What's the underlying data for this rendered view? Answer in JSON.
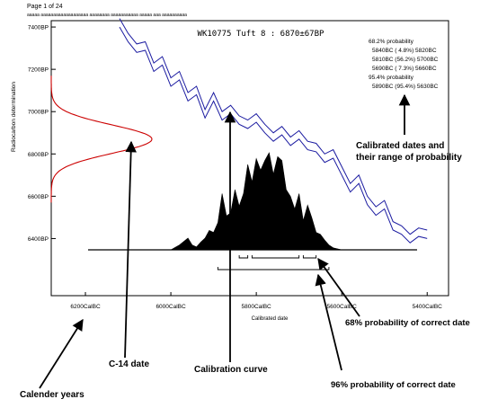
{
  "page_header": {
    "page_label": "Page 1 of 24",
    "url_line": "aaaaa aaaaaaaaaaaaaaaaaaa aaaaaaaa aaaaaaaaaaa aaaaa aaa aaaaaaaaaa"
  },
  "chart_data": {
    "type": "line",
    "title": "WK10775 Tuft 8 : 6870±67BP",
    "xlabel": "Calibrated date",
    "ylabel": "Radiocarbon determination",
    "x_ticks": [
      "6200CalBC",
      "6000CalBC",
      "5800CalBC",
      "5600CalBC",
      "5400CalBC"
    ],
    "x_tick_values": [
      -6200,
      -6000,
      -5800,
      -5600,
      -5400
    ],
    "xlim": [
      -6280,
      -5350
    ],
    "y_ticks": [
      "7400BP",
      "7200BP",
      "7000BP",
      "6800BP",
      "6600BP",
      "6400BP"
    ],
    "y_tick_values": [
      7400,
      7200,
      7000,
      6800,
      6600,
      6400
    ],
    "ylim": [
      6130,
      7430
    ],
    "grid": false,
    "probability_text": [
      "68.2% probability",
      "5840BC ( 4.8%) 5820BC",
      "5810BC (56.2%) 5700BC",
      "5690BC ( 7.3%) 5660BC",
      "95.4% probability",
      "5890BC (95.4%) 5630BC"
    ],
    "calibration_curve": {
      "color": "#1a1aa0",
      "x": [
        -6120,
        -6100,
        -6080,
        -6060,
        -6040,
        -6020,
        -6000,
        -5980,
        -5960,
        -5940,
        -5920,
        -5900,
        -5880,
        -5860,
        -5840,
        -5820,
        -5800,
        -5780,
        -5760,
        -5740,
        -5720,
        -5700,
        -5680,
        -5660,
        -5640,
        -5620,
        -5600,
        -5580,
        -5560,
        -5540,
        -5520,
        -5500,
        -5480,
        -5460,
        -5440,
        -5420,
        -5400
      ],
      "upper": [
        7440,
        7370,
        7320,
        7330,
        7230,
        7260,
        7160,
        7190,
        7090,
        7120,
        7010,
        7090,
        7000,
        7030,
        6980,
        6960,
        6990,
        6940,
        6900,
        6930,
        6880,
        6910,
        6860,
        6850,
        6800,
        6820,
        6740,
        6660,
        6700,
        6600,
        6550,
        6580,
        6480,
        6460,
        6420,
        6450,
        6440
      ],
      "lower": [
        7400,
        7330,
        7280,
        7290,
        7190,
        7220,
        7120,
        7150,
        7050,
        7080,
        6970,
        7050,
        6960,
        6990,
        6940,
        6920,
        6950,
        6900,
        6860,
        6890,
        6840,
        6870,
        6820,
        6810,
        6760,
        6780,
        6700,
        6620,
        6660,
        6560,
        6510,
        6540,
        6440,
        6420,
        6380,
        6410,
        6400
      ]
    },
    "radiocarbon_distribution": {
      "color": "#cc0000",
      "mean_bp": 6870,
      "sd_bp": 67
    },
    "calibrated_distribution": {
      "x": [
        -6000,
        -5980,
        -5960,
        -5950,
        -5940,
        -5930,
        -5920,
        -5910,
        -5900,
        -5890,
        -5880,
        -5870,
        -5860,
        -5850,
        -5840,
        -5830,
        -5820,
        -5810,
        -5800,
        -5790,
        -5780,
        -5770,
        -5760,
        -5750,
        -5740,
        -5730,
        -5720,
        -5710,
        -5700,
        -5690,
        -5680,
        -5670,
        -5660,
        -5650,
        -5640,
        -5630,
        -5620,
        -5600
      ],
      "density": [
        0,
        0.05,
        0.12,
        0.05,
        0.03,
        0.08,
        0.12,
        0.2,
        0.18,
        0.28,
        0.58,
        0.35,
        0.38,
        0.62,
        0.45,
        0.58,
        0.88,
        0.7,
        0.94,
        0.82,
        0.92,
        1.0,
        0.78,
        0.96,
        0.92,
        0.62,
        0.55,
        0.42,
        0.58,
        0.3,
        0.46,
        0.33,
        0.18,
        0.16,
        0.1,
        0.05,
        0.02,
        0
      ]
    },
    "ranges_68": [
      [
        -5840,
        -5820
      ],
      [
        -5810,
        -5700
      ],
      [
        -5690,
        -5660
      ]
    ],
    "range_95": [
      -5890,
      -5630
    ]
  },
  "annotations": {
    "calibrated_dates": [
      "Calibrated dates and",
      "their range of probability"
    ],
    "c14_date": "C-14 date",
    "calibration_curve": "Calibration curve",
    "calendar_years": "Calender years",
    "prob_68": "68% probability of correct date",
    "prob_96": "96% probability of correct date"
  }
}
